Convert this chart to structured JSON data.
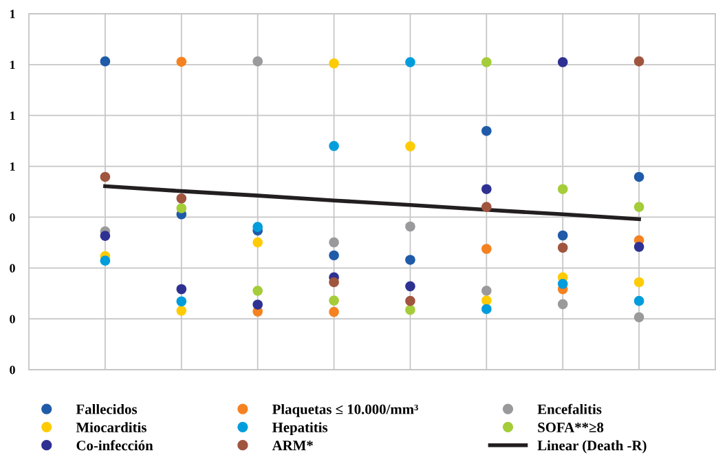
{
  "chart_data": {
    "type": "scatter",
    "categories": [
      null,
      null,
      null,
      null,
      null,
      null,
      null,
      null
    ],
    "series": [
      {
        "name": "Fallecidos",
        "color": "#1f5ba8",
        "values": [
          0.758,
          0.382,
          0.342,
          0.281,
          0.27,
          0.587,
          0.33,
          0.474
        ]
      },
      {
        "name": "Plaquetas ≤ 10.000/mm³",
        "color": "#f58220",
        "values": [
          null,
          0.757,
          0.143,
          0.142,
          null,
          0.297,
          0.198,
          0.318
        ]
      },
      {
        "name": "Encefalitis",
        "color": "#9a9a9c",
        "values": [
          0.34,
          null,
          0.758,
          0.313,
          0.352,
          0.194,
          0.161,
          0.129
        ]
      },
      {
        "name": "Miocarditis",
        "color": "#ffcb05",
        "values": [
          0.279,
          0.145,
          0.313,
          0.753,
          0.549,
          0.17,
          0.227,
          0.215
        ]
      },
      {
        "name": "Hepatitis",
        "color": "#009ddc",
        "values": [
          0.268,
          0.168,
          0.351,
          0.55,
          0.756,
          0.149,
          0.211,
          0.169
        ]
      },
      {
        "name": "SOFA**≥8",
        "color": "#a4cd39",
        "values": [
          null,
          0.397,
          0.194,
          0.17,
          0.147,
          0.756,
          0.444,
          0.4
        ]
      },
      {
        "name": "Co-infección",
        "color": "#2e3192",
        "values": [
          0.329,
          0.198,
          0.16,
          0.227,
          0.205,
          0.444,
          0.756,
          0.302
        ]
      },
      {
        "name": "ARM*",
        "color": "#a0553f",
        "values": [
          0.474,
          0.421,
          null,
          0.215,
          0.169,
          0.4,
          0.3,
          0.758
        ]
      },
      {
        "name": "Linear (Death -R)",
        "color": "#231f20",
        "type": "line",
        "marker": "none",
        "values": [
          0.451,
          0.439,
          0.428,
          0.416,
          0.405,
          0.393,
          0.382,
          0.37
        ]
      }
    ],
    "ylim": [
      0,
      0.875
    ],
    "yticks": [
      {
        "value": 0,
        "label": "0"
      },
      {
        "value": 0.125,
        "label": "0"
      },
      {
        "value": 0.25,
        "label": "0"
      },
      {
        "value": 0.375,
        "label": "0"
      },
      {
        "value": 0.5,
        "label": "1"
      },
      {
        "value": 0.625,
        "label": "1"
      },
      {
        "value": 0.75,
        "label": "1"
      },
      {
        "value": 0.875,
        "label": "1"
      }
    ],
    "grid": true,
    "legend": "bottom",
    "marker": "circle"
  }
}
